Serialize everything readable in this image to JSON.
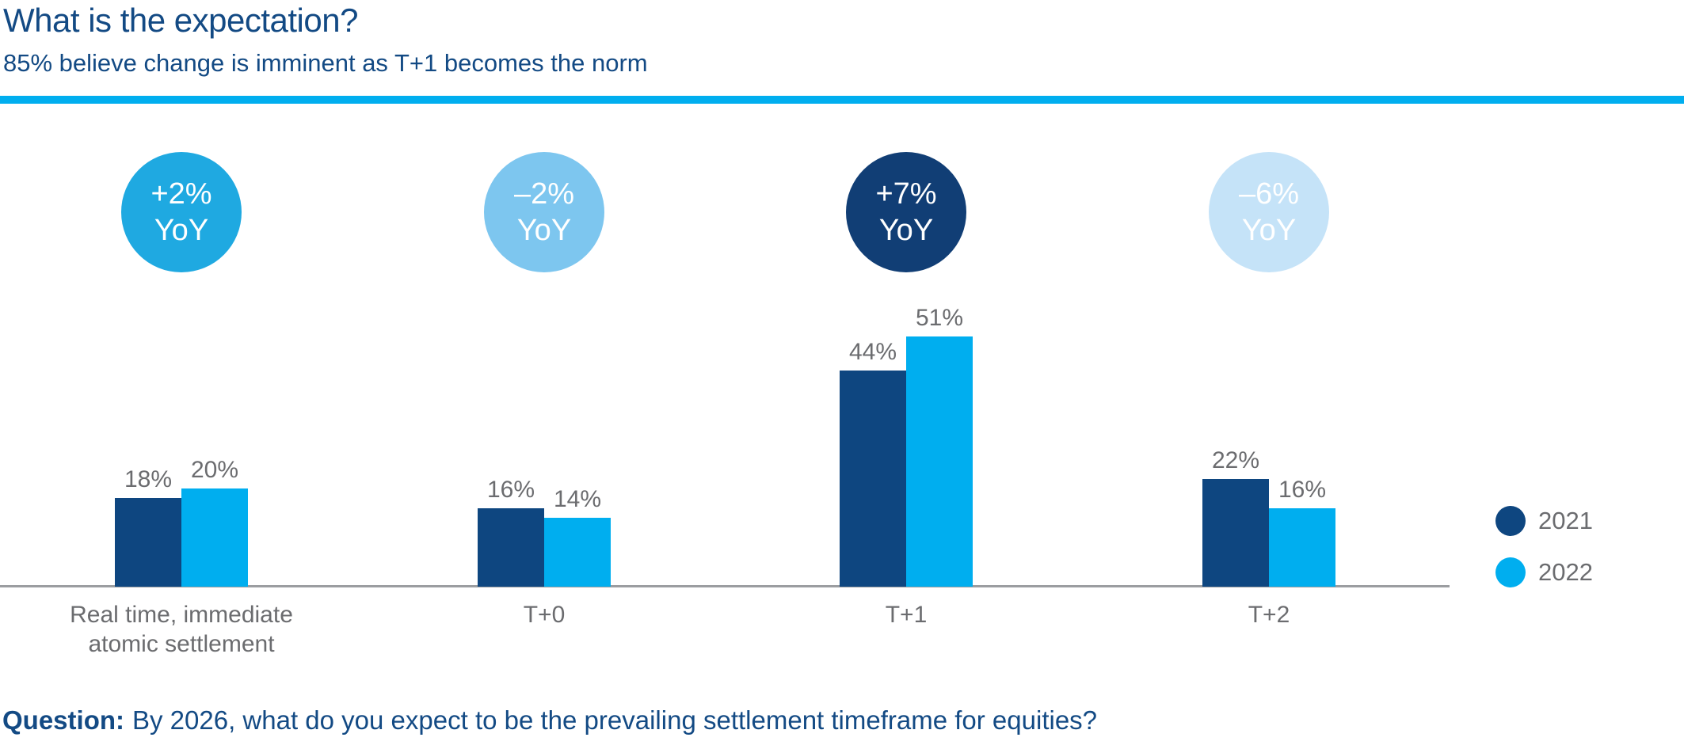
{
  "header": {
    "title": "What is the expectation?",
    "subtitle": "85% believe change is imminent as T+1 becomes the norm"
  },
  "colors": {
    "heading_blue": "#134a84",
    "navy": "#0e4680",
    "cyan": "#00aeef",
    "text_gray": "#6b6c6f",
    "axis_gray": "#9b9da0",
    "divider_cyan": "#00aeef"
  },
  "chart_data": {
    "type": "bar",
    "title": "What is the expectation?",
    "subtitle": "85% believe change is imminent as T+1 becomes the norm",
    "categories": [
      "Real time, immediate atomic settlement",
      "T+0",
      "T+1",
      "T+2"
    ],
    "series": [
      {
        "name": "2021",
        "color": "#0e4680",
        "values": [
          18,
          16,
          44,
          22
        ]
      },
      {
        "name": "2022",
        "color": "#00aeef",
        "values": [
          20,
          14,
          51,
          16
        ]
      }
    ],
    "value_suffix": "%",
    "ylim": [
      0,
      55
    ],
    "grid": false,
    "legend_position": "right",
    "legend": [
      "2021",
      "2022"
    ],
    "yoy_badges": [
      {
        "label": "+2%",
        "sub": "YoY",
        "bg": "#1fa9e1",
        "fg": "#ffffff"
      },
      {
        "label": "–2%",
        "sub": "YoY",
        "bg": "#7dc6ef",
        "fg": "#ffffff"
      },
      {
        "label": "+7%",
        "sub": "YoY",
        "bg": "#113e75",
        "fg": "#ffffff"
      },
      {
        "label": "–6%",
        "sub": "YoY",
        "bg": "#c5e3f8",
        "fg": "#ffffff"
      }
    ]
  },
  "footer": {
    "question_label": "Question:",
    "question_text": "By 2026, what do you expect to be the prevailing settlement timeframe for equities?"
  }
}
